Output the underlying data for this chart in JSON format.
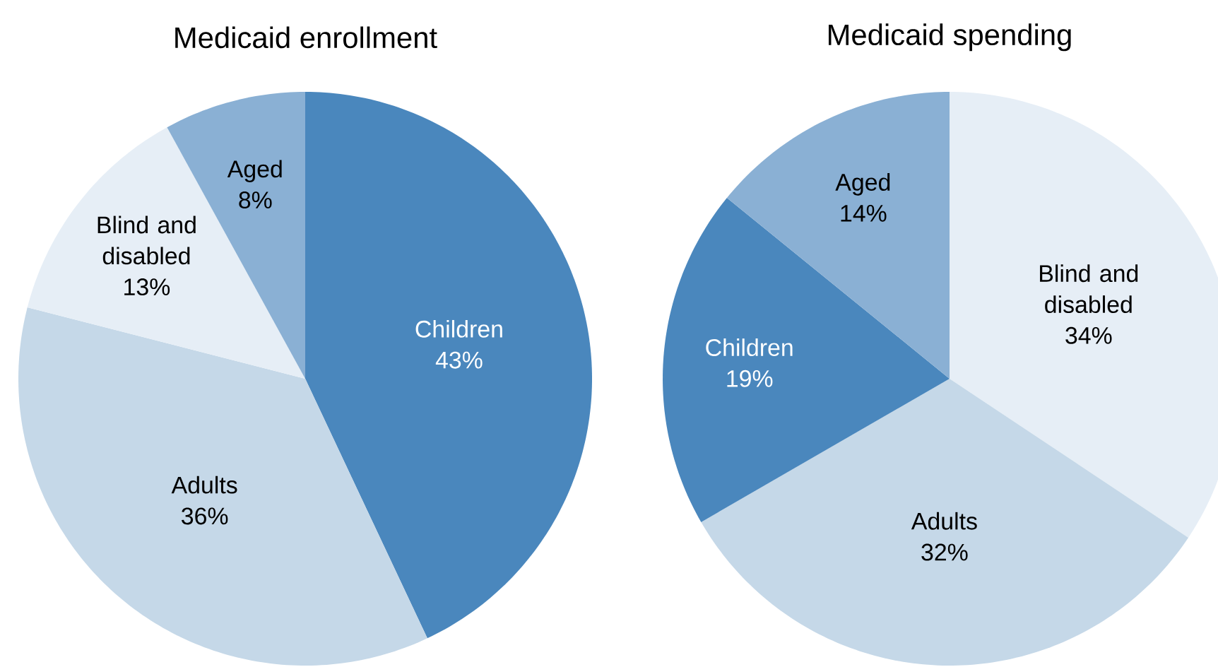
{
  "chart_data": [
    {
      "type": "pie",
      "title": "Medicaid enrollment",
      "categories": [
        "Children",
        "Adults",
        "Blind and disabled",
        "Aged"
      ],
      "values": [
        43,
        36,
        13,
        8
      ],
      "colors": [
        "#4a87bd",
        "#c5d8e8",
        "#e6eef6",
        "#8ab0d4"
      ],
      "value_labels": [
        "43%",
        "36%",
        "13%",
        "8%"
      ]
    },
    {
      "type": "pie",
      "title": "Medicaid spending",
      "categories": [
        "Blind and disabled",
        "Adults",
        "Children",
        "Aged"
      ],
      "values": [
        34,
        32,
        19,
        14
      ],
      "colors": [
        "#e6eef6",
        "#c5d8e8",
        "#4a87bd",
        "#8ab0d4"
      ],
      "value_labels": [
        "34%",
        "32%",
        "19%",
        "14%"
      ]
    }
  ]
}
